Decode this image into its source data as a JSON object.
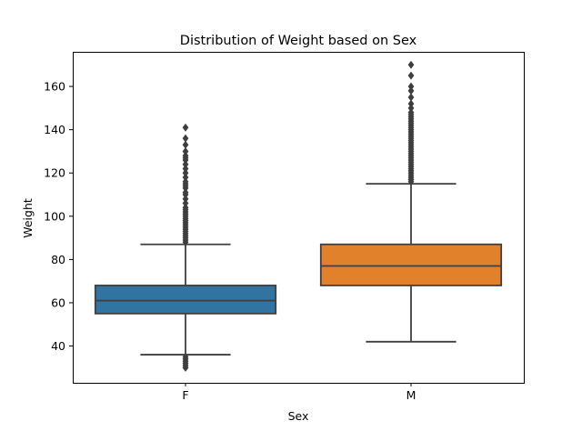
{
  "chart_data": {
    "type": "box",
    "title": "Distribution of Weight based on Sex",
    "xlabel": "Sex",
    "ylabel": "Weight",
    "categories": [
      "F",
      "M"
    ],
    "ylim": [
      23,
      176
    ],
    "yticks": [
      40,
      60,
      80,
      100,
      120,
      140,
      160
    ],
    "grid": false,
    "line_color": "#3f3f3f",
    "series": [
      {
        "category": "F",
        "color": "#3274a1",
        "whisker_low": 36,
        "q1": 55,
        "median": 61,
        "q3": 68,
        "whisker_high": 87,
        "outliers_high": [
          88,
          89,
          90,
          91,
          92,
          93,
          94,
          95,
          96,
          97,
          98,
          99,
          100,
          101,
          102,
          103,
          104,
          106,
          108,
          110,
          111,
          113,
          114,
          115,
          116,
          118,
          120,
          122,
          124,
          126,
          127,
          128,
          130,
          133,
          136,
          141
        ],
        "outliers_low": [
          30,
          31,
          32,
          33,
          34,
          35
        ]
      },
      {
        "category": "M",
        "color": "#e1812c",
        "whisker_low": 42,
        "q1": 68,
        "median": 77,
        "q3": 87,
        "whisker_high": 115,
        "outliers_high": [
          116,
          117,
          118,
          119,
          120,
          121,
          122,
          123,
          124,
          125,
          126,
          127,
          128,
          129,
          130,
          131,
          132,
          133,
          134,
          135,
          136,
          137,
          138,
          139,
          140,
          141,
          142,
          143,
          144,
          145,
          146,
          147,
          148,
          150,
          152,
          155,
          158,
          160,
          165,
          170
        ],
        "outliers_low": []
      }
    ]
  }
}
